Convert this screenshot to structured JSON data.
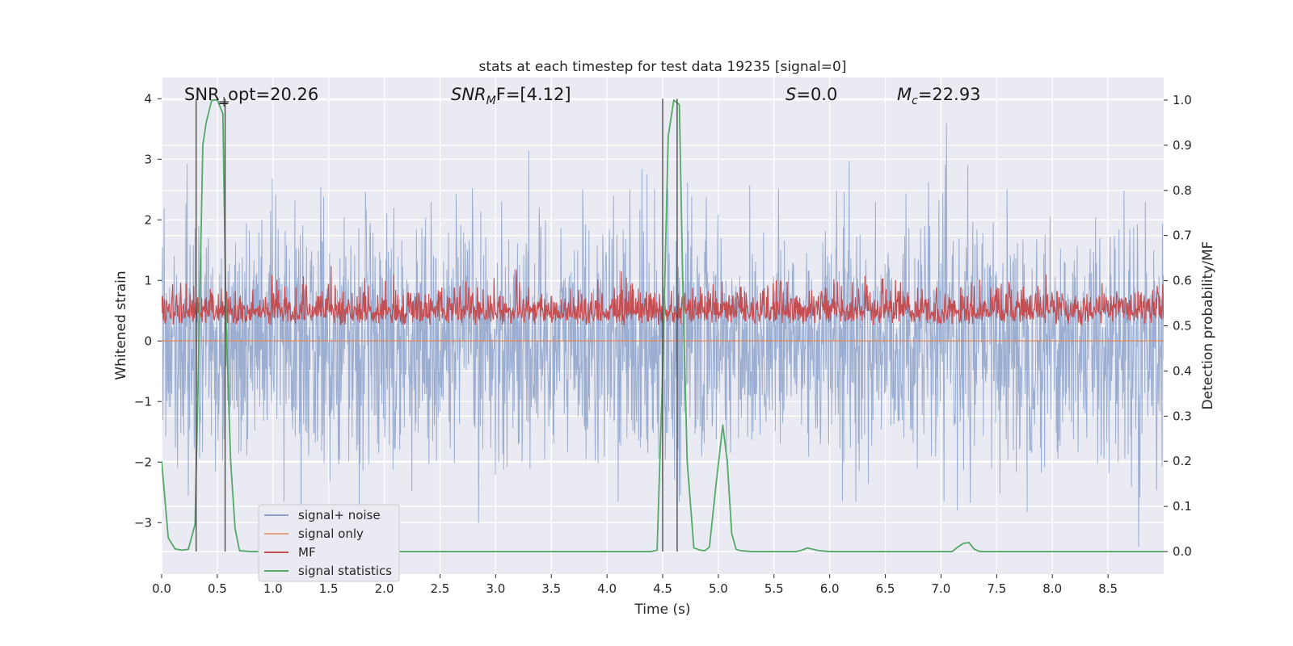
{
  "chart_data": {
    "type": "line",
    "title": "stats at each timestep for test data 19235 [signal=0]",
    "xlabel": "Time (s)",
    "ylabel_left": "Whitened strain",
    "ylabel_right": "Detection probability/MF",
    "xlim": [
      0,
      9.0
    ],
    "ylim_left": [
      -3.85,
      4.35
    ],
    "ylim_right": [
      -0.05,
      1.05
    ],
    "x_ticks": [
      0.0,
      0.5,
      1.0,
      1.5,
      2.0,
      2.5,
      3.0,
      3.5,
      4.0,
      4.5,
      5.0,
      5.5,
      6.0,
      6.5,
      7.0,
      7.5,
      8.0,
      8.5
    ],
    "x_tick_labels": [
      "0.0",
      "0.5",
      "1.0",
      "1.5",
      "2.0",
      "2.5",
      "3.0",
      "3.5",
      "4.0",
      "4.5",
      "5.0",
      "5.5",
      "6.0",
      "6.5",
      "7.0",
      "7.5",
      "8.0",
      "8.5"
    ],
    "y_left_ticks": [
      -3,
      -2,
      -1,
      0,
      1,
      2,
      3,
      4
    ],
    "y_left_tick_labels": [
      "−3",
      "−2",
      "−1",
      "0",
      "1",
      "2",
      "3",
      "4"
    ],
    "y_right_ticks": [
      0.0,
      0.1,
      0.2,
      0.3,
      0.4,
      0.5,
      0.6,
      0.7,
      0.8,
      0.9,
      1.0
    ],
    "y_right_tick_labels": [
      "0.0",
      "0.1",
      "0.2",
      "0.3",
      "0.4",
      "0.5",
      "0.6",
      "0.7",
      "0.8",
      "0.9",
      "1.0"
    ],
    "grid": true,
    "legend_position": "lower-left",
    "annotations": {
      "snr_opt": "SNR_opt=20.26",
      "snr_mf_prefix": "SNR",
      "snr_mf_sub": "M",
      "snr_mf_suffix": "F=[4.12]",
      "s_name": "S",
      "s_value": "=0.0",
      "mc_name": "M",
      "mc_sub": "c",
      "mc_value": "=22.93"
    },
    "series": [
      {
        "name": "signal+ noise",
        "axis": "left",
        "color": "#4c72b0",
        "description": "whitened noisy strain, approximately zero-mean noise with amplitude roughly between -3.7 and 3.7",
        "envelope": {
          "typical_min": -2.0,
          "typical_max": 2.0,
          "extreme_min": -3.75,
          "extreme_max": 3.6
        }
      },
      {
        "name": "signal only",
        "axis": "left",
        "color": "#dd8452",
        "constant_value": 0.0
      },
      {
        "name": "MF",
        "axis": "right",
        "color": "#c44e52",
        "baseline": 0.5,
        "range": [
          0.5,
          0.65
        ]
      },
      {
        "name": "signal statistics",
        "axis": "right",
        "color": "#55a868",
        "x": [
          0.0,
          0.06,
          0.12,
          0.18,
          0.24,
          0.3,
          0.33,
          0.37,
          0.4,
          0.45,
          0.5,
          0.55,
          0.58,
          0.62,
          0.66,
          0.7,
          0.8,
          1.0,
          4.4,
          4.45,
          4.5,
          4.55,
          4.6,
          4.65,
          4.68,
          4.72,
          4.78,
          4.84,
          4.88,
          4.92,
          4.98,
          5.04,
          5.08,
          5.12,
          5.16,
          5.2,
          5.3,
          5.7,
          5.75,
          5.8,
          5.85,
          5.9,
          6.0,
          7.1,
          7.15,
          7.2,
          7.25,
          7.3,
          7.35,
          9.0
        ],
        "y": [
          0.2,
          0.03,
          0.006,
          0.003,
          0.005,
          0.06,
          0.4,
          0.9,
          0.95,
          1.0,
          1.0,
          0.97,
          0.5,
          0.2,
          0.05,
          0.002,
          0.0,
          0.0,
          0.0,
          0.003,
          0.4,
          0.92,
          1.0,
          0.99,
          0.6,
          0.2,
          0.008,
          0.003,
          0.002,
          0.01,
          0.15,
          0.28,
          0.2,
          0.04,
          0.005,
          0.002,
          0.0,
          0.0,
          0.003,
          0.008,
          0.005,
          0.002,
          0.0,
          0.0,
          0.01,
          0.018,
          0.02,
          0.005,
          0.0,
          0.0
        ]
      }
    ],
    "vertical_markers": {
      "color": "#444444",
      "x": [
        0.31,
        0.57,
        4.5,
        4.63
      ],
      "y_top": 4.0
    },
    "tick_markers": {
      "color": "#444444",
      "x": [
        0.56
      ],
      "y": 3.95
    }
  }
}
